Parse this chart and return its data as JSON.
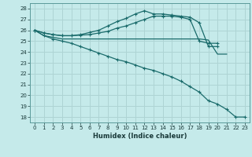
{
  "title": "",
  "xlabel": "Humidex (Indice chaleur)",
  "bg_color": "#c5eaea",
  "grid_color": "#aed4d4",
  "line_color": "#1a6b6b",
  "xlim": [
    -0.5,
    23.5
  ],
  "ylim": [
    17.5,
    28.5
  ],
  "xticks": [
    0,
    1,
    2,
    3,
    4,
    5,
    6,
    7,
    8,
    9,
    10,
    11,
    12,
    13,
    14,
    15,
    16,
    17,
    18,
    19,
    20,
    21,
    22,
    23
  ],
  "yticks": [
    18,
    19,
    20,
    21,
    22,
    23,
    24,
    25,
    26,
    27,
    28
  ],
  "lines": [
    {
      "x": [
        0,
        1,
        2,
        3,
        4,
        5,
        6,
        7,
        8,
        9,
        10,
        11,
        12,
        13,
        14,
        15,
        16,
        17,
        18,
        19,
        20
      ],
      "y": [
        26.0,
        25.75,
        25.6,
        25.5,
        25.5,
        25.6,
        25.8,
        26.0,
        26.4,
        26.8,
        27.1,
        27.5,
        27.8,
        27.5,
        27.5,
        27.4,
        27.3,
        27.2,
        26.7,
        24.5,
        24.5
      ],
      "marker": true
    },
    {
      "x": [
        0,
        1,
        2,
        3,
        4,
        5,
        6,
        7,
        8,
        9,
        10,
        11,
        12,
        13,
        14,
        15,
        16,
        17,
        18,
        19,
        20
      ],
      "y": [
        26.0,
        25.75,
        25.6,
        25.5,
        25.5,
        25.55,
        25.6,
        25.75,
        25.9,
        26.2,
        26.4,
        26.7,
        27.0,
        27.3,
        27.3,
        27.3,
        27.2,
        27.0,
        25.0,
        24.8,
        24.8
      ],
      "marker": true
    },
    {
      "x": [
        0,
        1,
        2,
        3,
        4,
        5,
        6,
        7,
        8,
        9,
        10,
        11,
        12,
        13,
        14,
        15,
        16,
        17,
        18,
        19,
        20,
        21
      ],
      "y": [
        26.0,
        25.5,
        25.35,
        25.2,
        25.2,
        25.2,
        25.2,
        25.2,
        25.2,
        25.2,
        25.2,
        25.2,
        25.2,
        25.2,
        25.2,
        25.2,
        25.2,
        25.2,
        25.2,
        25.1,
        23.8,
        23.8
      ],
      "marker": false
    },
    {
      "x": [
        0,
        1,
        2,
        3,
        4,
        5,
        6,
        7,
        8,
        9,
        10,
        11,
        12,
        13,
        14,
        15,
        16,
        17,
        18,
        19,
        20,
        21,
        22,
        23
      ],
      "y": [
        26.0,
        25.5,
        25.2,
        25.0,
        24.8,
        24.5,
        24.2,
        23.9,
        23.6,
        23.3,
        23.1,
        22.8,
        22.5,
        22.3,
        22.0,
        21.7,
        21.3,
        20.8,
        20.3,
        19.5,
        19.2,
        18.7,
        18.0,
        18.0
      ],
      "marker": true
    }
  ]
}
